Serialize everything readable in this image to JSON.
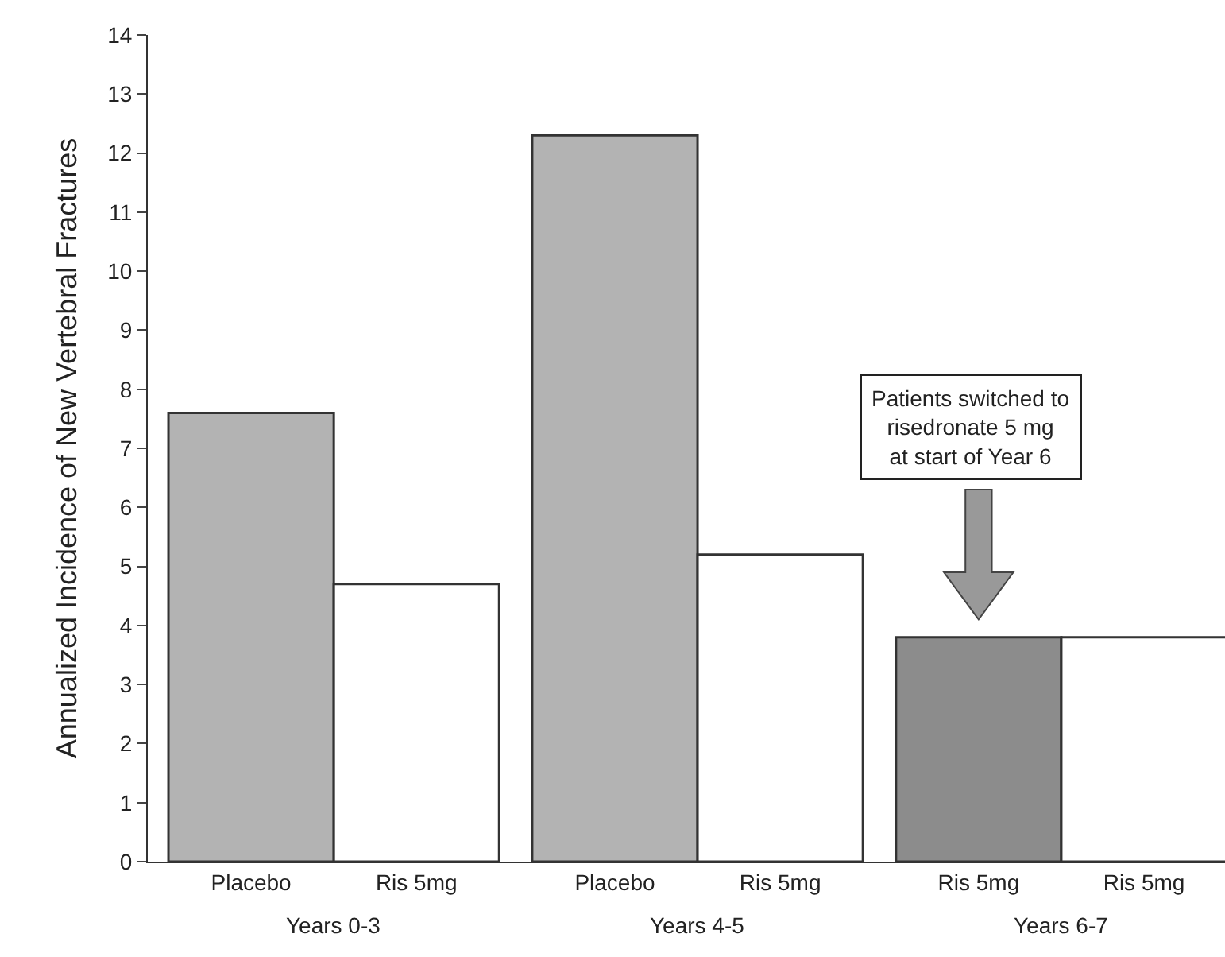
{
  "chart_data": {
    "type": "bar",
    "ylabel": "Annualized Incidence of New Vertebral Fractures",
    "categories": [
      "Placebo",
      "Ris 5mg",
      "Placebo",
      "Ris 5mg",
      "Ris 5mg",
      "Ris 5mg"
    ],
    "values": [
      7.6,
      4.7,
      12.3,
      5.2,
      3.8,
      3.8
    ],
    "colors": [
      "#b3b3b3",
      "#ffffff",
      "#b3b3b3",
      "#ffffff",
      "#8c8c8c",
      "#ffffff"
    ],
    "ylim": [
      0,
      14
    ],
    "yticks": [
      0,
      1,
      2,
      3,
      4,
      5,
      6,
      7,
      8,
      9,
      10,
      11,
      12,
      13,
      14
    ],
    "annotations": [
      "Years 0-3",
      "Years 4-5",
      "Years 6-7",
      "Patients switched to\nrisedronate 5 mg\nat start of Year 6"
    ]
  }
}
